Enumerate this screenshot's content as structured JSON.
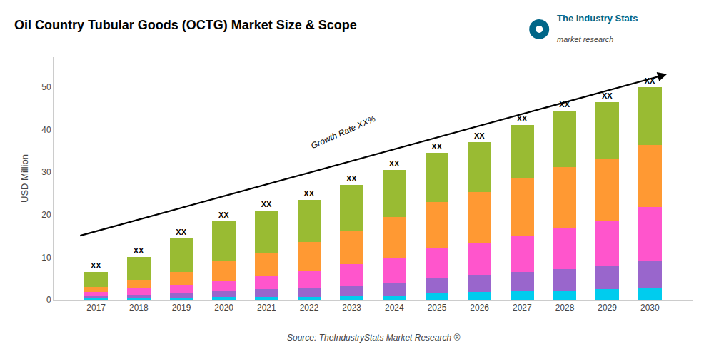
{
  "chart_data": {
    "type": "bar",
    "stacked": true,
    "title": "Oil Country Tubular Goods (OCTG) Market Size & Scope",
    "ylabel": "USD Million",
    "x": [
      2017,
      2018,
      2019,
      2020,
      2021,
      2022,
      2023,
      2024,
      2025,
      2026,
      2027,
      2028,
      2029,
      2030
    ],
    "xlim": [
      2016,
      2031
    ],
    "xticks": [
      2017,
      2018,
      2019,
      2020,
      2021,
      2022,
      2023,
      2024,
      2025,
      2026,
      2027,
      2028,
      2029,
      2030
    ],
    "ylim": [
      0,
      57
    ],
    "yticks": [
      0,
      10,
      20,
      30,
      40,
      50
    ],
    "grid": false,
    "series": [
      {
        "color": "#00ccee",
        "values": [
          0.3,
          0.4,
          0.5,
          0.6,
          0.7,
          0.7,
          0.8,
          0.9,
          1.5,
          1.8,
          2.0,
          2.2,
          2.5,
          2.8
        ]
      },
      {
        "color": "#9966cc",
        "values": [
          0.5,
          0.8,
          1.0,
          1.5,
          1.8,
          2.2,
          2.5,
          3.0,
          3.5,
          4.0,
          4.5,
          5.0,
          5.5,
          6.5
        ]
      },
      {
        "color": "#ff55cc",
        "values": [
          1.0,
          1.5,
          2.0,
          2.5,
          3.0,
          4.0,
          5.0,
          6.0,
          7.0,
          7.5,
          8.5,
          9.5,
          10.5,
          12.5
        ]
      },
      {
        "color": "#ff9933",
        "values": [
          1.2,
          2.0,
          3.0,
          4.5,
          5.5,
          6.6,
          8.0,
          9.5,
          11.0,
          12.0,
          13.5,
          14.5,
          14.5,
          14.5
        ]
      },
      {
        "color": "#99bb33",
        "values": [
          3.5,
          5.3,
          8.0,
          9.4,
          10.0,
          10.0,
          10.7,
          11.1,
          11.5,
          11.7,
          12.5,
          13.3,
          13.5,
          13.7
        ]
      }
    ],
    "bar_labels": [
      "XX",
      "XX",
      "XX",
      "XX",
      "XX",
      "XX",
      "XX",
      "XX",
      "XX",
      "XX",
      "XX",
      "XX",
      "XX",
      "XX"
    ],
    "annotations": [
      {
        "text": "Growth Rate XX%",
        "x": 2022.8,
        "y": 34.5
      }
    ],
    "arrow": {
      "x0": 2016.6,
      "y0": 15.0,
      "x1": 2030.4,
      "y1": 53.0
    },
    "source": "Source: TheIndustryStats Market Research ®",
    "logo": [
      "The Industry Stats",
      "market research"
    ]
  }
}
